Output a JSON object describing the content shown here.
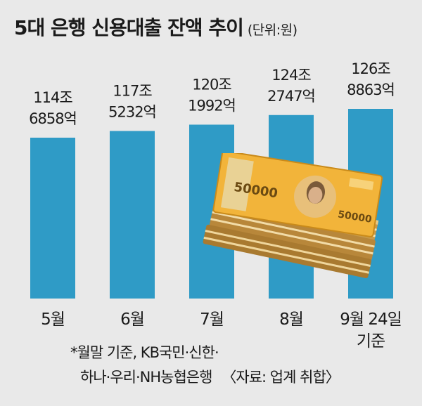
{
  "title": "5대 은행 신용대출 잔액 추이",
  "unit": "(단위:원)",
  "chart_data": {
    "type": "bar",
    "categories": [
      "5월",
      "6월",
      "7월",
      "8월",
      "9월 24일 기준"
    ],
    "category_lines": [
      [
        "5월"
      ],
      [
        "6월"
      ],
      [
        "7월"
      ],
      [
        "8월"
      ],
      [
        "9월 24일",
        "기준"
      ]
    ],
    "values": [
      114.6858,
      117.5232,
      120.1992,
      124.2747,
      126.8863
    ],
    "value_labels": [
      [
        "114조",
        "6858억"
      ],
      [
        "117조",
        "5232억"
      ],
      [
        "120조",
        "1992억"
      ],
      [
        "124조",
        "2747억"
      ],
      [
        "126조",
        "8863억"
      ]
    ],
    "color": "#2f9bc6"
  },
  "footnote": {
    "line1": "*월말 기준, KB국민·신한·",
    "line2": "하나·우리·NH농협은행",
    "source": "〈자료: 업계 취합〉"
  },
  "money_image": {
    "icon": "won-banknote-stack-icon",
    "note_text": "50000"
  }
}
